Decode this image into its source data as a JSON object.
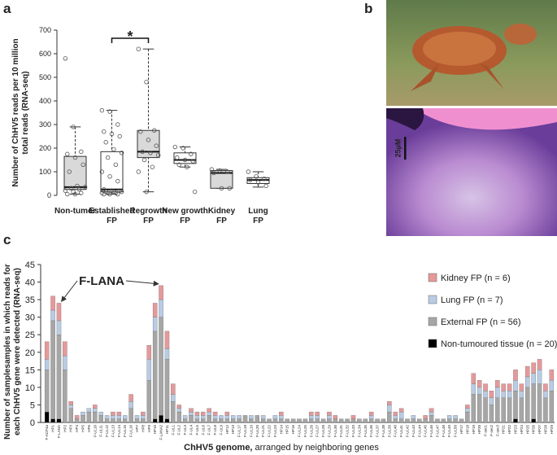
{
  "panel_labels": [
    "a",
    "b",
    "c"
  ],
  "panel_b": {
    "scale_bar": "25µM"
  },
  "chart_data": [
    {
      "type": "boxplot",
      "ylabel": [
        "Number of ChHV5 reads per 10 million",
        "total reads (RNA-seq)"
      ],
      "categories": [
        [
          "Non-tumor"
        ],
        [
          "Established",
          "FP"
        ],
        [
          "Regrowth",
          "FP"
        ],
        [
          "New growth",
          "FP"
        ],
        [
          "Kidney",
          "FP"
        ],
        [
          "Lung",
          "FP"
        ]
      ],
      "boxes": [
        {
          "whislo": 5,
          "q1": 25,
          "med": 35,
          "q3": 165,
          "whishi": 290,
          "fill": "#d9d9d9"
        },
        {
          "whislo": 5,
          "q1": 15,
          "med": 25,
          "q3": 185,
          "whishi": 360,
          "fill": "#ffffff"
        },
        {
          "whislo": 15,
          "q1": 160,
          "med": 185,
          "q3": 275,
          "whishi": 620,
          "fill": "#d9d9d9"
        },
        {
          "whislo": 120,
          "q1": 135,
          "med": 150,
          "q3": 180,
          "whishi": 205,
          "fill": "#ffffff"
        },
        {
          "whislo": 30,
          "q1": 30,
          "med": 95,
          "q3": 105,
          "whishi": 110,
          "fill": "#d9d9d9"
        },
        {
          "whislo": 35,
          "q1": 50,
          "med": 65,
          "q3": 75,
          "whishi": 100,
          "fill": "#ffffff"
        }
      ],
      "points": [
        [
          580,
          290,
          185,
          175,
          160,
          130,
          100,
          40,
          35,
          30,
          25,
          20,
          15,
          10,
          5,
          5
        ],
        [
          360,
          355,
          300,
          270,
          260,
          250,
          225,
          195,
          180,
          160,
          130,
          100,
          80,
          60,
          25,
          20,
          20,
          15,
          15,
          15,
          10,
          10,
          10,
          5,
          5,
          5
        ],
        [
          620,
          480,
          275,
          270,
          235,
          210,
          185,
          180,
          170,
          150,
          120,
          100,
          15
        ],
        [
          205,
          200,
          175,
          160,
          150,
          145,
          130,
          120,
          15
        ],
        [
          110,
          105,
          100,
          95,
          30,
          30
        ],
        [
          100,
          80,
          70,
          65,
          55,
          40
        ]
      ],
      "ylim": [
        0,
        700
      ],
      "yticks": [
        0,
        100,
        200,
        300,
        400,
        500,
        600,
        700
      ],
      "significance": {
        "label": "*",
        "from": 1,
        "to": 2
      }
    },
    {
      "type": "stacked-bar",
      "ylabel": [
        "Number of samplesamples in which reads for",
        "each ChHV5 gene were detected (RNA-seq)"
      ],
      "xlabel": [
        "ChHV5 genome,",
        " arranged by neighboring genes"
      ],
      "annotation": {
        "text": "F-LANA",
        "targets": [
          2,
          19
        ]
      },
      "legend": "upper right",
      "categories": [
        "F-ACP4a",
        "HP1",
        "F-LANA",
        "HP2",
        "HP3",
        "HP4",
        "HP5",
        "HP6",
        "F-UL10",
        "F-UL11",
        "F-UL12",
        "F-UL13",
        "F-UL14",
        "F-UL15",
        "F-UL16",
        "HP7",
        "HP8",
        "HP9",
        "HP10",
        "F-LANA2",
        "HP11",
        "F-UL1",
        "F-UL2",
        "F-UL3",
        "F-UL4",
        "F-UL5",
        "F-UL6",
        "F-UL7",
        "F-UL8",
        "F-UL9",
        "HP12",
        "HP13",
        "F-UL17",
        "F-UL18",
        "F-UL19",
        "F-UL20",
        "F-UL21",
        "F-UL22",
        "F-UL23",
        "HP14",
        "HP15",
        "HP16",
        "F-UL24",
        "F-UL25",
        "F-UL26",
        "F-UL27",
        "F-UL28",
        "F-UL29",
        "F-UL30",
        "F-UL31",
        "F-UL32",
        "F-UL33",
        "F-UL34",
        "F-UL35",
        "F-UL36",
        "F-UL37",
        "F-UL38",
        "F-UL39",
        "F-UL40",
        "F-UL41",
        "F-UL42",
        "F-UL43",
        "F-UL44",
        "F-UL45",
        "F-UL46",
        "F-UL47",
        "F-UL48",
        "F-UL49",
        "F-UL50",
        "HP17",
        "HP18",
        "HP19",
        "HP20",
        "F-sec1",
        "F-sec2",
        "F-sec3",
        "HP21",
        "HP22",
        "HP23",
        "HP24",
        "HP25",
        "HP26",
        "HP27",
        "HP28",
        "HP29"
      ],
      "series": [
        {
          "name": "Kidney FP (n = 6)",
          "color": "#e6999a",
          "values": [
            5,
            4,
            5,
            4,
            1,
            1,
            0,
            0,
            1,
            0,
            0,
            1,
            1,
            0,
            2,
            0,
            1,
            4,
            4,
            4,
            5,
            3,
            1,
            0,
            1,
            1,
            1,
            1,
            1,
            0,
            1,
            0,
            0,
            0,
            0,
            0,
            0,
            0,
            0,
            1,
            0,
            0,
            0,
            0,
            1,
            1,
            0,
            1,
            1,
            0,
            0,
            1,
            0,
            0,
            1,
            0,
            0,
            1,
            1,
            1,
            0,
            0,
            0,
            1,
            1,
            0,
            0,
            0,
            0,
            0,
            1,
            3,
            2,
            2,
            2,
            2,
            2,
            2,
            3,
            2,
            3,
            3,
            3,
            2,
            3
          ]
        },
        {
          "name": "Lung FP (n = 7)",
          "color": "#b8cce4",
          "values": [
            3,
            3,
            4,
            4,
            1,
            0,
            1,
            1,
            1,
            1,
            1,
            1,
            1,
            1,
            2,
            1,
            1,
            6,
            4,
            5,
            3,
            2,
            1,
            1,
            1,
            1,
            1,
            1,
            1,
            1,
            1,
            1,
            1,
            0,
            1,
            0,
            1,
            0,
            1,
            1,
            0,
            0,
            0,
            0,
            1,
            1,
            0,
            1,
            0,
            0,
            0,
            0,
            0,
            0,
            1,
            0,
            0,
            2,
            1,
            2,
            0,
            1,
            0,
            0,
            1,
            0,
            0,
            1,
            1,
            0,
            1,
            3,
            2,
            2,
            2,
            3,
            2,
            2,
            3,
            2,
            3,
            3,
            4,
            2,
            3
          ]
        },
        {
          "name": "External FP (n = 56)",
          "color": "#a6a6a6",
          "values": [
            12,
            28,
            24,
            15,
            4,
            1,
            2,
            3,
            3,
            2,
            1,
            1,
            1,
            1,
            4,
            1,
            1,
            12,
            25,
            28,
            17,
            6,
            3,
            1,
            2,
            1,
            1,
            2,
            1,
            1,
            1,
            1,
            1,
            2,
            1,
            2,
            1,
            1,
            1,
            1,
            1,
            1,
            1,
            1,
            1,
            1,
            1,
            1,
            1,
            1,
            1,
            1,
            1,
            1,
            1,
            1,
            1,
            3,
            1,
            1,
            1,
            1,
            1,
            1,
            2,
            1,
            1,
            1,
            1,
            1,
            3,
            8,
            8,
            7,
            5,
            7,
            7,
            7,
            8,
            7,
            10,
            10,
            11,
            7,
            9
          ]
        },
        {
          "name": "Non-tumoured tissue (n = 20)",
          "color": "#000000",
          "values": [
            3,
            1,
            1,
            0,
            0,
            0,
            0,
            0,
            0,
            0,
            0,
            0,
            0,
            0,
            0,
            0,
            0,
            0,
            1,
            2,
            1,
            0,
            0,
            0,
            0,
            0,
            0,
            0,
            0,
            0,
            0,
            0,
            0,
            0,
            0,
            0,
            0,
            0,
            0,
            0,
            0,
            0,
            0,
            0,
            0,
            0,
            0,
            0,
            0,
            0,
            0,
            0,
            0,
            0,
            0,
            0,
            0,
            0,
            0,
            0,
            0,
            0,
            0,
            0,
            0,
            0,
            0,
            0,
            0,
            0,
            0,
            0,
            0,
            0,
            0,
            0,
            0,
            0,
            1,
            0,
            0,
            1,
            0,
            0,
            0
          ]
        }
      ],
      "ylim": [
        0,
        45
      ],
      "yticks": [
        0,
        5,
        10,
        15,
        20,
        25,
        30,
        35,
        40,
        45
      ]
    }
  ]
}
